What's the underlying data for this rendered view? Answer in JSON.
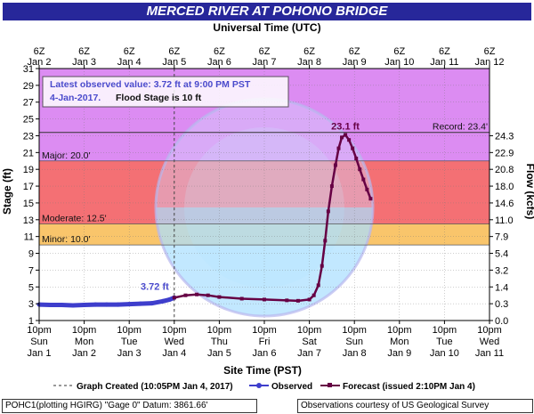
{
  "title": "MERCED RIVER AT POHONO BRIDGE",
  "top_axis_title": "Universal Time (UTC)",
  "bottom_axis_title": "Site Time (PST)",
  "y_left_label": "Stage (ft)",
  "y_right_label": "Flow (kcfs)",
  "info_box": {
    "line1": "Latest observed value: 3.72 ft at 9:00 PM PST",
    "line2_a": "4-Jan-2017.",
    "line2_b": "Flood Stage is 10 ft"
  },
  "thresholds": {
    "record": {
      "label": "Record: 23.4'",
      "value": 23.4
    },
    "major": {
      "label": "Major: 20.0'",
      "value": 20.0
    },
    "moderate": {
      "label": "Moderate: 12.5'",
      "value": 12.5
    },
    "minor": {
      "label": "Minor: 10.0'",
      "value": 10.0
    }
  },
  "annotations": {
    "peak": "23.1 ft",
    "latest": "3.72 ft"
  },
  "legend": {
    "graph_created": "Graph Created (10:05PM Jan 4, 2017)",
    "observed": "Observed",
    "forecast": "Forecast (issued 2:10PM Jan 4)"
  },
  "footer": {
    "left": "POHC1(plotting HGIRG) \"Gage 0\" Datum: 3861.66'",
    "right": "Observations courtesy of US Geological Survey"
  },
  "colors": {
    "title_bg": "#27279a",
    "purple_zone": "#dc8cf2",
    "red_zone": "#f47074",
    "orange_zone": "#f9c56b",
    "white_zone": "#ffffff",
    "observed": "#3e3ecc",
    "forecast": "#660044"
  },
  "chart_data": {
    "type": "line",
    "title": "MERCED RIVER AT POHONO BRIDGE",
    "xlabel": "Site Time (PST)",
    "ylabel": "Stage (ft)",
    "ylim": [
      1,
      31
    ],
    "y_ticks": [
      1,
      3,
      5,
      7,
      9,
      11,
      13,
      15,
      17,
      19,
      21,
      23,
      25,
      27,
      29,
      31
    ],
    "right_axis": {
      "label": "Flow (kcfs)",
      "ticks": [
        {
          "stage": 1,
          "label": "0.0"
        },
        {
          "stage": 3,
          "label": "0.3"
        },
        {
          "stage": 5,
          "label": "1.4"
        },
        {
          "stage": 7,
          "label": "3.2"
        },
        {
          "stage": 9,
          "label": "5.4"
        },
        {
          "stage": 11,
          "label": "7.9"
        },
        {
          "stage": 13,
          "label": "11.0"
        },
        {
          "stage": 15,
          "label": "14.6"
        },
        {
          "stage": 17,
          "label": "18.0"
        },
        {
          "stage": 19,
          "label": "20.8"
        },
        {
          "stage": 21,
          "label": "22.9"
        },
        {
          "stage": 23,
          "label": "24.3"
        }
      ]
    },
    "x_ticks_bottom": [
      {
        "time": "10pm",
        "day": "Sun",
        "date": "Jan 1"
      },
      {
        "time": "10pm",
        "day": "Mon",
        "date": "Jan 2"
      },
      {
        "time": "10pm",
        "day": "Tue",
        "date": "Jan 3"
      },
      {
        "time": "10pm",
        "day": "Wed",
        "date": "Jan 4"
      },
      {
        "time": "10pm",
        "day": "Thu",
        "date": "Jan 5"
      },
      {
        "time": "10pm",
        "day": "Fri",
        "date": "Jan 6"
      },
      {
        "time": "10pm",
        "day": "Sat",
        "date": "Jan 7"
      },
      {
        "time": "10pm",
        "day": "Sun",
        "date": "Jan 8"
      },
      {
        "time": "10pm",
        "day": "Mon",
        "date": "Jan 9"
      },
      {
        "time": "10pm",
        "day": "Tue",
        "date": "Jan 10"
      },
      {
        "time": "10pm",
        "day": "Wed",
        "date": "Jan 11"
      }
    ],
    "x_ticks_top": [
      {
        "time": "6Z",
        "date": "Jan 2"
      },
      {
        "time": "6Z",
        "date": "Jan 3"
      },
      {
        "time": "6Z",
        "date": "Jan 4"
      },
      {
        "time": "6Z",
        "date": "Jan 5"
      },
      {
        "time": "6Z",
        "date": "Jan 6"
      },
      {
        "time": "6Z",
        "date": "Jan 7"
      },
      {
        "time": "6Z",
        "date": "Jan 8"
      },
      {
        "time": "6Z",
        "date": "Jan 9"
      },
      {
        "time": "6Z",
        "date": "Jan 10"
      },
      {
        "time": "6Z",
        "date": "Jan 11"
      },
      {
        "time": "6Z",
        "date": "Jan 12"
      }
    ],
    "x_range_days": [
      0,
      10
    ],
    "graph_created_day": 3.0,
    "series": [
      {
        "name": "Observed",
        "points": [
          [
            0,
            2.9
          ],
          [
            0.25,
            2.85
          ],
          [
            0.5,
            2.85
          ],
          [
            0.75,
            2.8
          ],
          [
            1,
            2.85
          ],
          [
            1.25,
            2.9
          ],
          [
            1.5,
            2.9
          ],
          [
            1.75,
            2.9
          ],
          [
            2,
            2.95
          ],
          [
            2.25,
            3.0
          ],
          [
            2.5,
            3.05
          ],
          [
            2.75,
            3.3
          ],
          [
            2.9,
            3.5
          ],
          [
            3.0,
            3.72
          ]
        ]
      },
      {
        "name": "Forecast",
        "points": [
          [
            3.0,
            3.72
          ],
          [
            3.25,
            4.0
          ],
          [
            3.5,
            4.1
          ],
          [
            3.75,
            4.0
          ],
          [
            4.0,
            3.8
          ],
          [
            4.5,
            3.6
          ],
          [
            5.0,
            3.5
          ],
          [
            5.5,
            3.4
          ],
          [
            5.75,
            3.35
          ],
          [
            6.0,
            3.5
          ],
          [
            6.1,
            4.0
          ],
          [
            6.2,
            5.2
          ],
          [
            6.28,
            7.5
          ],
          [
            6.35,
            10.5
          ],
          [
            6.42,
            14.0
          ],
          [
            6.5,
            17.0
          ],
          [
            6.58,
            19.5
          ],
          [
            6.65,
            21.5
          ],
          [
            6.72,
            22.8
          ],
          [
            6.8,
            23.1
          ],
          [
            6.88,
            22.5
          ],
          [
            6.96,
            21.5
          ],
          [
            7.04,
            20.3
          ],
          [
            7.12,
            19.0
          ],
          [
            7.2,
            17.8
          ],
          [
            7.28,
            16.6
          ],
          [
            7.36,
            15.5
          ]
        ]
      }
    ]
  }
}
